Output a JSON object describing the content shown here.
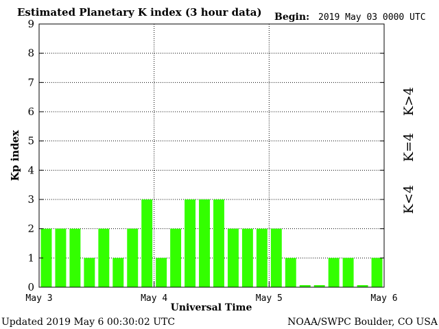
{
  "chart_data": {
    "type": "bar",
    "title": "Estimated Planetary K index (3 hour data)",
    "begin_label": "Begin:",
    "begin_value": "2019 May 03 0000 UTC",
    "ylabel": "Kp index",
    "xlabel": "Universal Time",
    "ylim": [
      0,
      9
    ],
    "yticks": [
      "0",
      "1",
      "2",
      "3",
      "4",
      "5",
      "6",
      "7",
      "8",
      "9"
    ],
    "xticks": [
      "May 3",
      "May 4",
      "May 5",
      "May 6"
    ],
    "grid": true,
    "bar_color": "#33ff00",
    "values": [
      2,
      2,
      2,
      1,
      2,
      1,
      2,
      3,
      1,
      2,
      3,
      3,
      3,
      2,
      2,
      2,
      2,
      1,
      0.07,
      0.07,
      1,
      1,
      0.07,
      1
    ],
    "legend": [
      {
        "label": "K>4",
        "color": "#ff2a00"
      },
      {
        "label": "K=4",
        "color": "#ffd21a"
      },
      {
        "label": "K<4",
        "color": "#33ff00"
      }
    ]
  },
  "footer": {
    "updated": "Updated 2019 May  6 00:30:02 UTC",
    "source": "NOAA/SWPC Boulder, CO USA"
  }
}
